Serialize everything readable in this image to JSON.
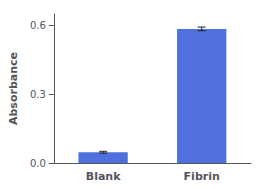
{
  "chart_data": {
    "type": "bar",
    "categories": [
      "Blank",
      "Fibrin"
    ],
    "values": [
      0.047,
      0.585
    ],
    "errors": [
      0.004,
      0.008
    ],
    "ylabel": "Absorbance",
    "ylim": [
      0.0,
      0.65
    ],
    "yticks": [
      {
        "value": 0.0,
        "label": "0.0"
      },
      0.3,
      0.6
    ],
    "grid": false
  }
}
